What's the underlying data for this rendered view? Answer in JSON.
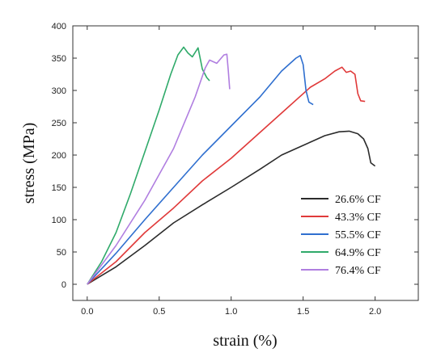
{
  "chart_data": {
    "type": "line",
    "title": "",
    "xlabel": "strain (%)",
    "ylabel": "stress (MPa)",
    "xlim": [
      -0.1,
      2.3
    ],
    "ylim": [
      -25,
      400
    ],
    "xticks": [
      "0.0",
      "0.5",
      "1.0",
      "1.5",
      "2.0"
    ],
    "yticks": [
      "0",
      "50",
      "100",
      "150",
      "200",
      "250",
      "300",
      "350",
      "400"
    ],
    "xtick_values": [
      0,
      0.5,
      1.0,
      1.5,
      2.0
    ],
    "ytick_values": [
      0,
      50,
      100,
      150,
      200,
      250,
      300,
      350,
      400
    ],
    "grid": false,
    "legend_position": "lower-right",
    "series": [
      {
        "name": "26.6% CF",
        "color": "#2b2b2b",
        "points": [
          [
            0,
            0
          ],
          [
            0.2,
            27
          ],
          [
            0.4,
            60
          ],
          [
            0.6,
            95
          ],
          [
            0.8,
            123
          ],
          [
            1.0,
            150
          ],
          [
            1.2,
            178
          ],
          [
            1.35,
            200
          ],
          [
            1.45,
            210
          ],
          [
            1.55,
            220
          ],
          [
            1.65,
            230
          ],
          [
            1.75,
            236
          ],
          [
            1.82,
            237
          ],
          [
            1.88,
            233
          ],
          [
            1.92,
            225
          ],
          [
            1.95,
            210
          ],
          [
            1.97,
            188
          ],
          [
            2.0,
            183
          ]
        ]
      },
      {
        "name": "43.3% CF",
        "color": "#e03a3a",
        "points": [
          [
            0,
            0
          ],
          [
            0.2,
            35
          ],
          [
            0.4,
            80
          ],
          [
            0.6,
            118
          ],
          [
            0.8,
            160
          ],
          [
            1.0,
            195
          ],
          [
            1.2,
            235
          ],
          [
            1.4,
            275
          ],
          [
            1.55,
            305
          ],
          [
            1.65,
            318
          ],
          [
            1.72,
            330
          ],
          [
            1.77,
            336
          ],
          [
            1.8,
            328
          ],
          [
            1.83,
            330
          ],
          [
            1.86,
            325
          ],
          [
            1.88,
            295
          ],
          [
            1.9,
            284
          ],
          [
            1.93,
            283
          ]
        ]
      },
      {
        "name": "55.5% CF",
        "color": "#2f6fcf",
        "points": [
          [
            0,
            0
          ],
          [
            0.2,
            48
          ],
          [
            0.4,
            100
          ],
          [
            0.6,
            150
          ],
          [
            0.8,
            200
          ],
          [
            1.0,
            245
          ],
          [
            1.2,
            290
          ],
          [
            1.35,
            330
          ],
          [
            1.45,
            350
          ],
          [
            1.48,
            354
          ],
          [
            1.5,
            340
          ],
          [
            1.52,
            300
          ],
          [
            1.54,
            282
          ],
          [
            1.57,
            278
          ]
        ]
      },
      {
        "name": "64.9% CF",
        "color": "#2faa6a",
        "points": [
          [
            0,
            0
          ],
          [
            0.1,
            35
          ],
          [
            0.2,
            80
          ],
          [
            0.3,
            140
          ],
          [
            0.4,
            205
          ],
          [
            0.5,
            270
          ],
          [
            0.58,
            325
          ],
          [
            0.63,
            355
          ],
          [
            0.67,
            367
          ],
          [
            0.7,
            358
          ],
          [
            0.73,
            352
          ],
          [
            0.77,
            366
          ],
          [
            0.8,
            333
          ],
          [
            0.83,
            320
          ],
          [
            0.85,
            315
          ]
        ]
      },
      {
        "name": "76.4% CF",
        "color": "#b07ee0",
        "points": [
          [
            0,
            0
          ],
          [
            0.2,
            60
          ],
          [
            0.4,
            130
          ],
          [
            0.6,
            210
          ],
          [
            0.75,
            290
          ],
          [
            0.82,
            335
          ],
          [
            0.85,
            347
          ],
          [
            0.9,
            342
          ],
          [
            0.95,
            355
          ],
          [
            0.97,
            356
          ],
          [
            0.98,
            330
          ],
          [
            0.99,
            302
          ]
        ]
      }
    ]
  }
}
